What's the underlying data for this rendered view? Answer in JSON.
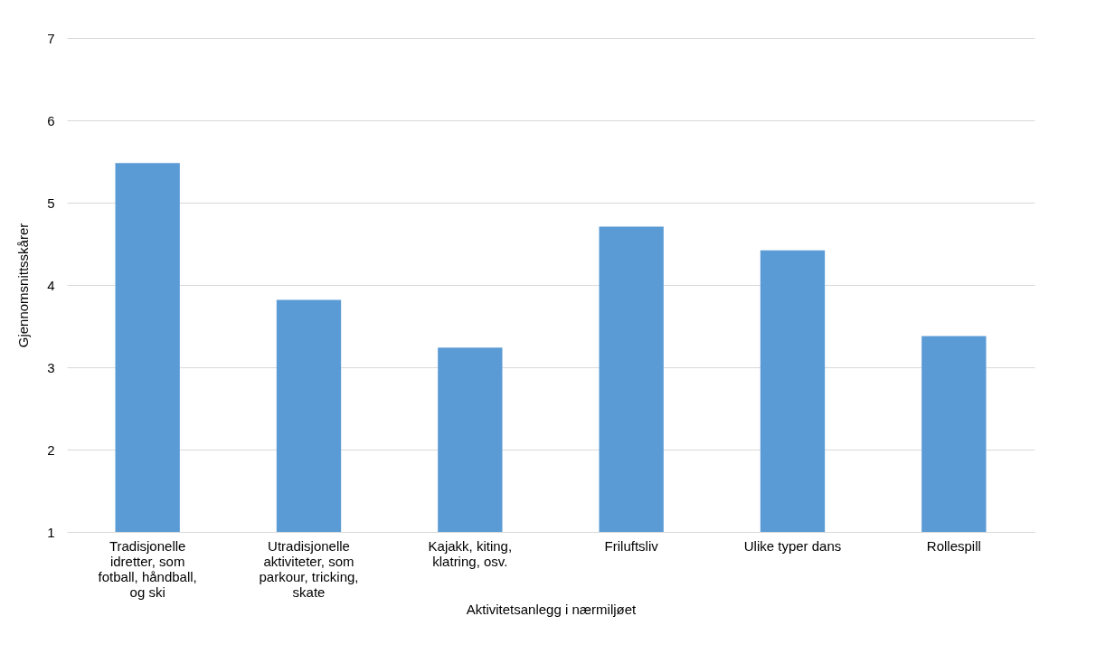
{
  "chart_data": {
    "type": "bar",
    "xlabel": "Aktivitetsanlegg i nærmiljøet",
    "ylabel": "Gjennomsnittsskårer",
    "categories": [
      "Tradisjonelle idretter, som fotball, håndball, og ski",
      "Utradisjonelle aktiviteter, som parkour, tricking, skate",
      "Kajakk, kiting, klatring, osv.",
      "Friluftsliv",
      "Ulike typer dans",
      "Rollespill"
    ],
    "values": [
      5.48,
      3.82,
      3.24,
      4.71,
      4.42,
      3.38
    ],
    "color": "#5b9bd5",
    "ylim": [
      1,
      7
    ],
    "yticks": [
      1,
      2,
      3,
      4,
      5,
      6,
      7
    ],
    "grid": "y"
  }
}
